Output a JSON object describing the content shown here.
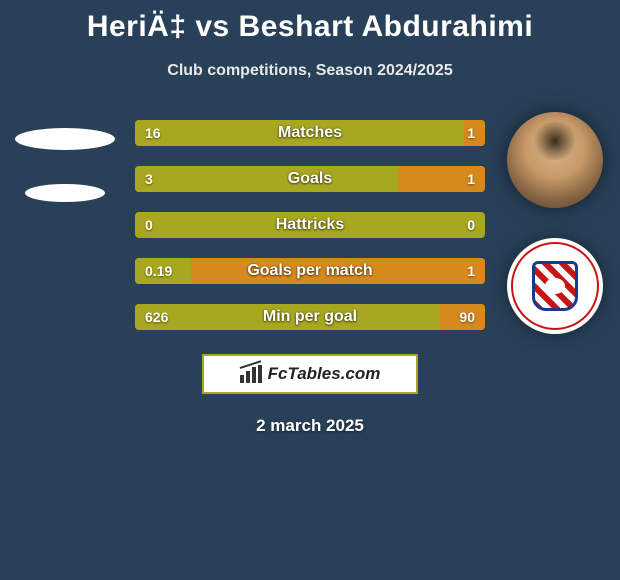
{
  "background_color": "#284058",
  "title": "HeriÄ‡ vs Beshart Abdurahimi",
  "title_color": "#ffffff",
  "title_fontsize": 30,
  "subtitle": "Club competitions, Season 2024/2025",
  "subtitle_color": "#e8e8e8",
  "subtitle_fontsize": 16,
  "left_player": {
    "name": "HeriÄ‡",
    "avatar_style": "blank-ellipses"
  },
  "right_player": {
    "name": "Beshart Abdurahimi",
    "avatar_style": "face-photo",
    "club_badge": "HSK Zrinjski Mostar"
  },
  "bar_colors": {
    "left": "#a8a820",
    "right": "#d68a1e",
    "bg": "#a8a820"
  },
  "bars": [
    {
      "label": "Matches",
      "left_val": "16",
      "right_val": "1",
      "left_pct": 94,
      "right_pct": 6
    },
    {
      "label": "Goals",
      "left_val": "3",
      "right_val": "1",
      "left_pct": 75,
      "right_pct": 25
    },
    {
      "label": "Hattricks",
      "left_val": "0",
      "right_val": "0",
      "left_pct": 100,
      "right_pct": 0
    },
    {
      "label": "Goals per match",
      "left_val": "0.19",
      "right_val": "1",
      "left_pct": 16,
      "right_pct": 84
    },
    {
      "label": "Min per goal",
      "left_val": "626",
      "right_val": "90",
      "left_pct": 87,
      "right_pct": 13
    }
  ],
  "brand_text": "FcTables.com",
  "brand_box": {
    "bg": "#ffffff",
    "border": "#a8a820"
  },
  "date_text": "2 march 2025"
}
